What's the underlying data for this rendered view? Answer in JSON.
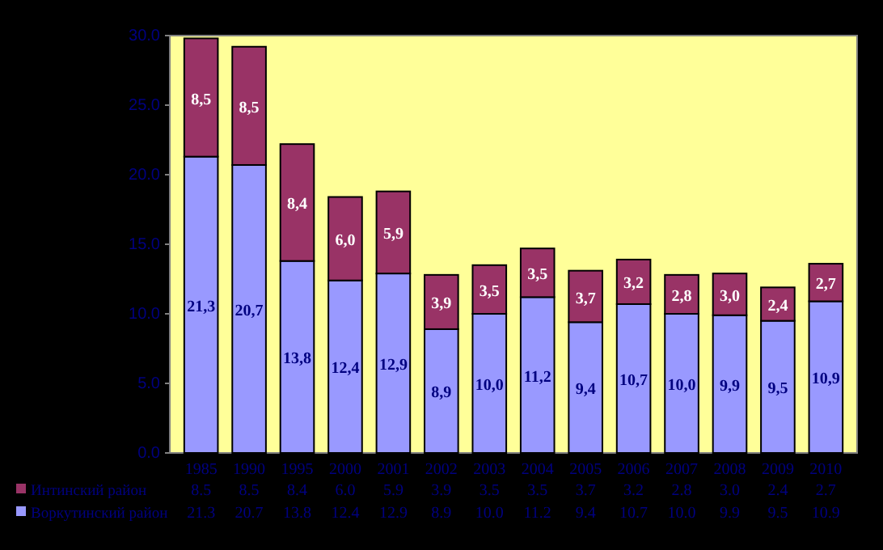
{
  "chart_data": {
    "type": "bar",
    "stacked": true,
    "categories": [
      "1985",
      "1990",
      "1995",
      "2000",
      "2001",
      "2002",
      "2003",
      "2004",
      "2005",
      "2006",
      "2007",
      "2008",
      "2009",
      "2010"
    ],
    "series": [
      {
        "name": "Воркутинский район",
        "color": "#9999ff",
        "values": [
          21.3,
          20.7,
          13.8,
          12.4,
          12.9,
          8.9,
          10.0,
          11.2,
          9.4,
          10.7,
          10.0,
          9.9,
          9.5,
          10.9
        ],
        "value_labels": [
          "21,3",
          "20,7",
          "13,8",
          "12,4",
          "12,9",
          "8,9",
          "10,0",
          "11,2",
          "9,4",
          "10,7",
          "10,0",
          "9,9",
          "9,5",
          "10,9"
        ]
      },
      {
        "name": "Интинский район",
        "color": "#993366",
        "values": [
          8.5,
          8.5,
          8.4,
          6.0,
          5.9,
          3.9,
          3.5,
          3.5,
          3.7,
          3.2,
          2.8,
          3.0,
          2.4,
          2.7
        ],
        "value_labels": [
          "8,5",
          "8,5",
          "8,4",
          "6,0",
          "5,9",
          "3,9",
          "3,5",
          "3,5",
          "3,7",
          "3,2",
          "2,8",
          "3,0",
          "2,4",
          "2,7"
        ]
      }
    ],
    "ylim": [
      0,
      30
    ],
    "yticks": [
      {
        "value": 0,
        "label": "0.0"
      },
      {
        "value": 5,
        "label": "5.0"
      },
      {
        "value": 10,
        "label": "10.0"
      },
      {
        "value": 15,
        "label": "15.0"
      },
      {
        "value": 20,
        "label": "20.0"
      },
      {
        "value": 25,
        "label": "25.0"
      },
      {
        "value": 30,
        "label": "30.0"
      }
    ],
    "annotations": [
      "8.5",
      "8.5",
      "8.4",
      "6.0",
      "5.9",
      "3.9",
      "3.5",
      "3.5",
      "3.7",
      "3.2",
      "2.8",
      "3.0",
      "2.4",
      "2.7",
      "21.3",
      "20.7",
      "13.8",
      "12.4",
      "12.9",
      "8.9",
      "10.0",
      "11.2",
      "9.4",
      "10.7",
      "10.0",
      "9.9",
      "9.5",
      "10.9"
    ],
    "legend": "bottom left"
  }
}
